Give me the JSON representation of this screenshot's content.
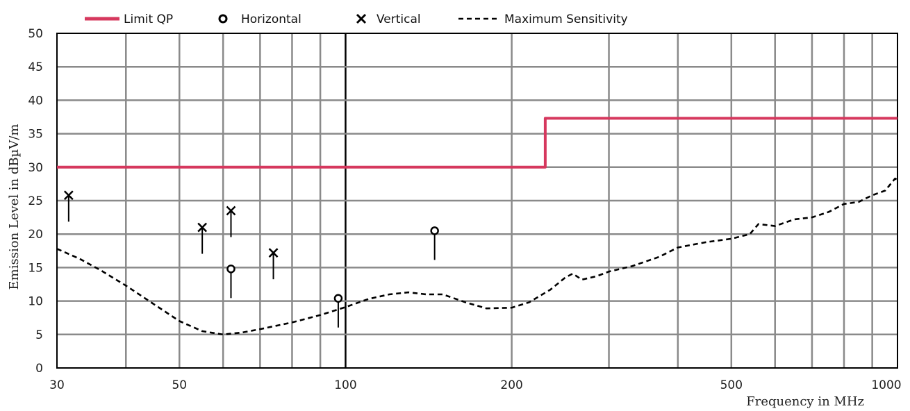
{
  "chart_data": {
    "type": "line",
    "title": "",
    "xlabel": "Frequency in MHz",
    "ylabel": "Emission Level in dBµV/m",
    "x_scale": "log",
    "xlim": [
      30,
      1000
    ],
    "ylim": [
      0,
      50
    ],
    "x_ticks": [
      30,
      50,
      100,
      200,
      500,
      1000
    ],
    "x_tick_labels": [
      "30",
      "50",
      "100",
      "200",
      "500",
      "1000"
    ],
    "y_ticks": [
      0,
      5,
      10,
      15,
      20,
      25,
      30,
      35,
      40,
      45,
      50
    ],
    "y_tick_labels": [
      "0",
      "5",
      "10",
      "15",
      "20",
      "25",
      "30",
      "35",
      "40",
      "45",
      "50"
    ],
    "grid": true,
    "legend_position": "top",
    "series": [
      {
        "name": "Limit QP",
        "kind": "step-line",
        "color": "#d6385e",
        "points": [
          [
            30,
            30
          ],
          [
            230,
            30
          ],
          [
            230,
            37.3
          ],
          [
            1000,
            37.3
          ]
        ]
      },
      {
        "name": "Horizontal",
        "kind": "marker",
        "marker": "o",
        "color": "#000000",
        "points": [
          [
            62,
            14.8
          ],
          [
            97,
            10.4
          ],
          [
            145,
            20.5
          ]
        ]
      },
      {
        "name": "Vertical",
        "kind": "marker",
        "marker": "x",
        "color": "#000000",
        "points": [
          [
            31.5,
            25.8
          ],
          [
            55,
            21
          ],
          [
            62,
            23.5
          ],
          [
            74,
            17.2
          ]
        ]
      },
      {
        "name": "Maximum Sensitivity",
        "kind": "dashed-line",
        "color": "#000000",
        "points": [
          [
            30,
            17.8
          ],
          [
            33,
            16.3
          ],
          [
            36,
            14.6
          ],
          [
            40,
            12.3
          ],
          [
            45,
            9.5
          ],
          [
            50,
            7
          ],
          [
            55,
            5.5
          ],
          [
            60,
            5
          ],
          [
            65,
            5.3
          ],
          [
            70,
            5.8
          ],
          [
            80,
            6.8
          ],
          [
            90,
            7.9
          ],
          [
            100,
            9.1
          ],
          [
            110,
            10.3
          ],
          [
            120,
            11
          ],
          [
            130,
            11.3
          ],
          [
            140,
            11
          ],
          [
            150,
            11
          ],
          [
            165,
            9.8
          ],
          [
            180,
            8.9
          ],
          [
            200,
            9
          ],
          [
            215,
            9.8
          ],
          [
            235,
            11.7
          ],
          [
            250,
            13.5
          ],
          [
            258,
            14.1
          ],
          [
            268,
            13.2
          ],
          [
            285,
            13.7
          ],
          [
            300,
            14.4
          ],
          [
            330,
            15.2
          ],
          [
            370,
            16.6
          ],
          [
            400,
            18
          ],
          [
            450,
            18.8
          ],
          [
            500,
            19.3
          ],
          [
            540,
            20
          ],
          [
            560,
            21.5
          ],
          [
            600,
            21.2
          ],
          [
            650,
            22.2
          ],
          [
            700,
            22.5
          ],
          [
            750,
            23.3
          ],
          [
            800,
            24.5
          ],
          [
            850,
            24.8
          ],
          [
            900,
            25.8
          ],
          [
            950,
            26.5
          ],
          [
            990,
            28.3
          ],
          [
            1000,
            28.1
          ]
        ]
      }
    ]
  }
}
